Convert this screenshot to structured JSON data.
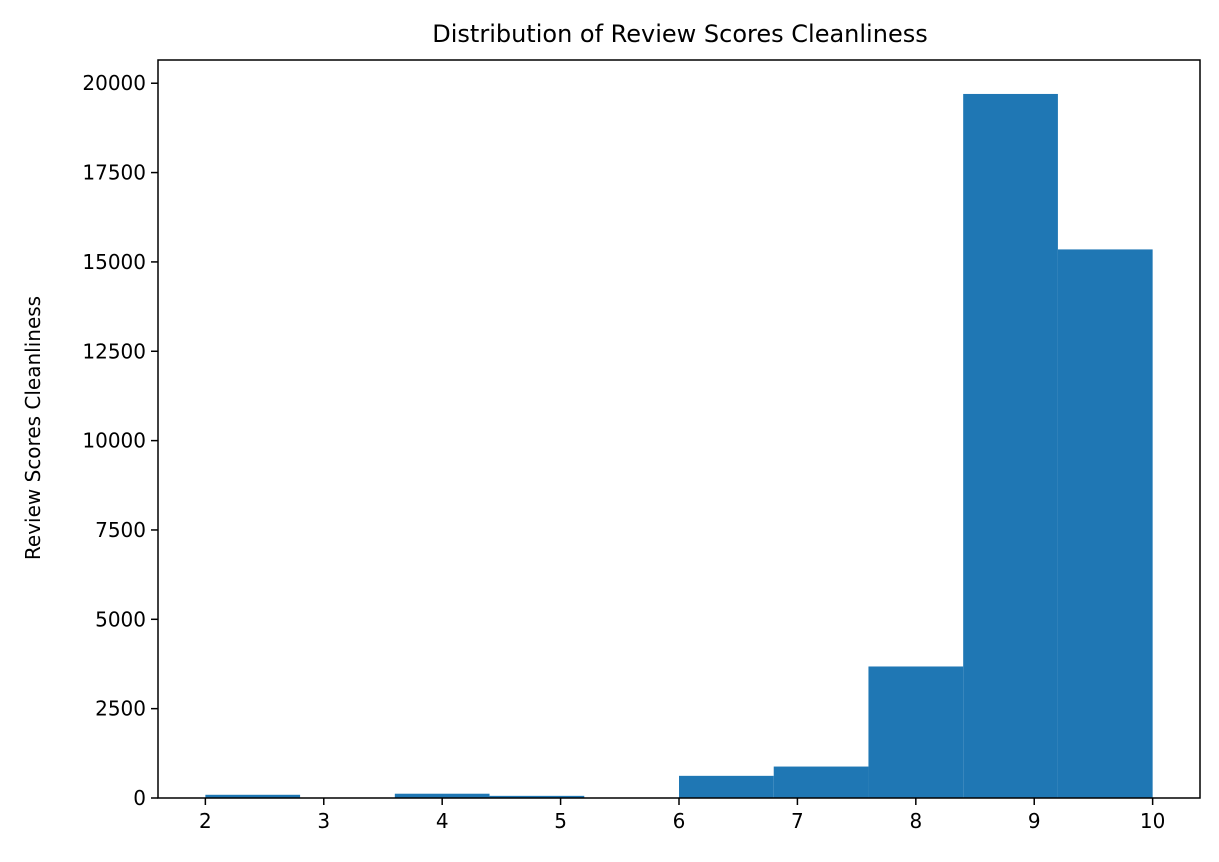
{
  "chart_data": {
    "type": "bar",
    "title": "Distribution of Review Scores Cleanliness",
    "xlabel": "",
    "ylabel": "Review Scores Cleanliness",
    "bin_edges": [
      2.0,
      2.8,
      3.6,
      4.4,
      5.2,
      6.0,
      6.8,
      7.6,
      8.4,
      9.2,
      10.0
    ],
    "values": [
      90,
      0,
      120,
      60,
      0,
      620,
      880,
      3680,
      19700,
      15350
    ],
    "xlim": [
      1.6,
      10.4
    ],
    "ylim": [
      0,
      20650
    ],
    "x_ticks": [
      2,
      3,
      4,
      5,
      6,
      7,
      8,
      9,
      10
    ],
    "y_ticks": [
      0,
      2500,
      5000,
      7500,
      10000,
      12500,
      15000,
      17500,
      20000
    ],
    "bar_color": "#1f77b4",
    "grid": false,
    "legend": "none"
  }
}
